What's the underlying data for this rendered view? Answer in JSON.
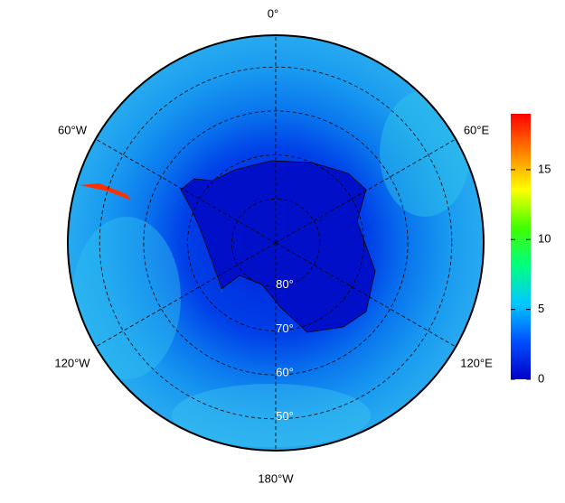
{
  "map": {
    "longitude_labels": [
      "0°",
      "60°E",
      "120°E",
      "180°W",
      "120°W",
      "60°W"
    ],
    "latitude_labels": [
      "80°",
      "70°",
      "60°",
      "50°"
    ],
    "latitudes": [
      80,
      70,
      60,
      50
    ],
    "colorbar": {
      "lim": [
        0,
        19
      ],
      "ticks": [
        0,
        5,
        10,
        15
      ],
      "colors": [
        "#0000c8",
        "#0050ff",
        "#00c8ff",
        "#00ff80",
        "#40ff00",
        "#ffff00",
        "#ff8000",
        "#ff0000"
      ]
    }
  }
}
